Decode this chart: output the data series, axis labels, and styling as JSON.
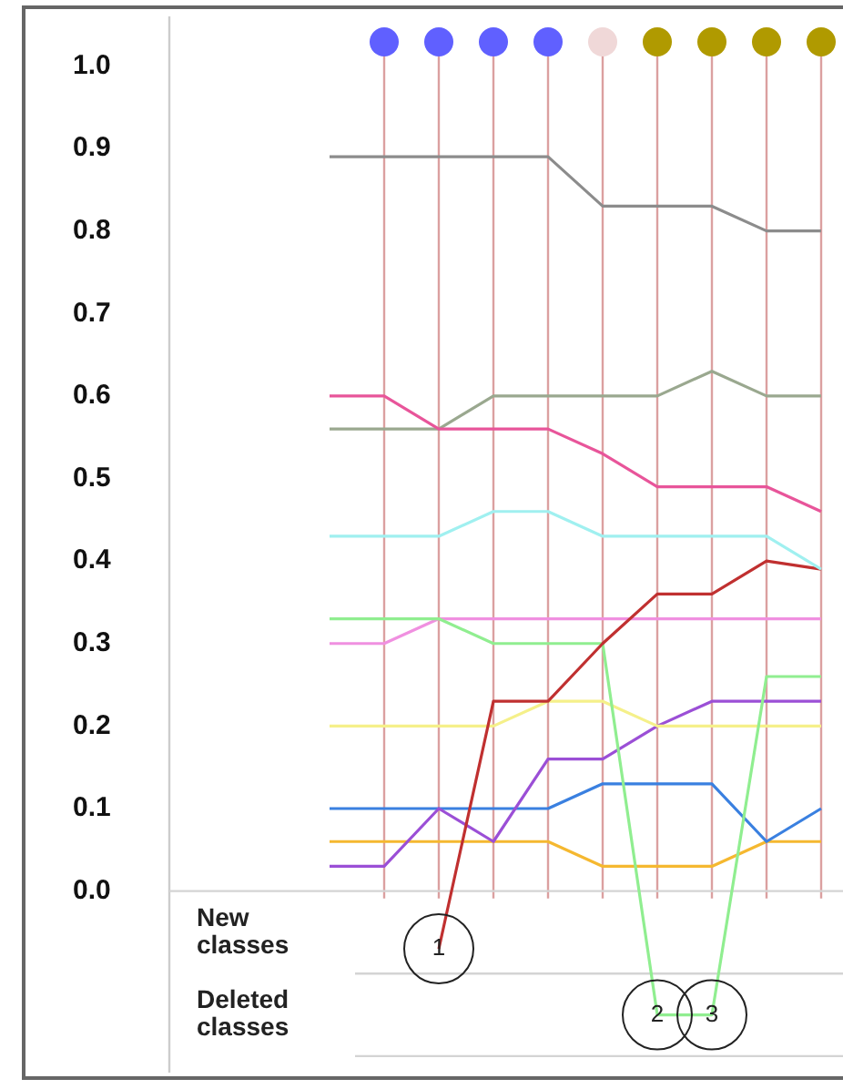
{
  "chart_data": {
    "type": "line",
    "tick_labels": "y",
    "grid": "x",
    "legend": false,
    "marker": "none",
    "line_style": "solid",
    "categories": [
      null,
      null,
      null,
      null,
      null,
      null,
      null,
      null,
      null,
      null
    ],
    "ylim": [
      -0.22,
      1.06
    ],
    "yticks": [
      {
        "value": 0,
        "label": "0.0"
      },
      0.1,
      0.2,
      0.3,
      0.4,
      0.5,
      0.6,
      0.7,
      0.8,
      0.9,
      {
        "value": 1,
        "label": "1.0"
      }
    ],
    "series": [
      {
        "color": "#8c8c8c",
        "values": [
          0.89,
          0.89,
          0.89,
          0.89,
          0.89,
          0.83,
          0.83,
          0.83,
          0.8,
          0.8
        ]
      },
      {
        "color": "#e8559a",
        "values": [
          0.6,
          0.6,
          0.56,
          0.56,
          0.56,
          0.53,
          0.49,
          0.49,
          0.49,
          0.46
        ]
      },
      {
        "color": "#9aa88f",
        "values": [
          0.56,
          0.56,
          0.56,
          0.6,
          0.6,
          0.6,
          0.6,
          0.63,
          0.6,
          0.6
        ]
      },
      {
        "color": "#a0f0f0",
        "values": [
          0.43,
          0.43,
          0.43,
          0.46,
          0.46,
          0.43,
          0.43,
          0.43,
          0.43,
          0.39
        ]
      },
      {
        "color": "#c03030",
        "values": [
          null,
          null,
          -0.07,
          0.23,
          0.23,
          0.3,
          0.36,
          0.36,
          0.4,
          0.39
        ]
      },
      {
        "color": "#90ee90",
        "values": [
          0.33,
          0.33,
          0.33,
          0.3,
          0.3,
          0.3,
          -0.15,
          -0.15,
          0.26,
          0.26
        ]
      },
      {
        "color": "#f090e0",
        "values": [
          0.3,
          0.3,
          0.33,
          0.33,
          0.33,
          0.33,
          0.33,
          0.33,
          0.33,
          0.33
        ]
      },
      {
        "color": "#f5f08a",
        "values": [
          0.2,
          0.2,
          0.2,
          0.2,
          0.23,
          0.23,
          0.2,
          0.2,
          0.2,
          0.2
        ]
      },
      {
        "color": "#9b4fd6",
        "values": [
          0.03,
          0.03,
          0.1,
          0.06,
          0.16,
          0.16,
          0.2,
          0.23,
          0.23,
          0.23
        ]
      },
      {
        "color": "#3a80e0",
        "values": [
          0.1,
          0.1,
          0.1,
          0.1,
          0.1,
          0.13,
          0.13,
          0.13,
          0.06,
          0.1
        ]
      },
      {
        "color": "#f5b830",
        "values": [
          0.06,
          0.06,
          0.06,
          0.06,
          0.06,
          0.03,
          0.03,
          0.03,
          0.06,
          0.06
        ]
      }
    ],
    "ref_lines": [
      {
        "axis": "y",
        "value": 0,
        "color": "#d4d4d4"
      },
      {
        "axis": "y",
        "value": -0.1,
        "color": "#d4d4d4"
      },
      {
        "axis": "y",
        "value": -0.2,
        "color": "#d4d4d4"
      }
    ],
    "annotations": [
      "New classes",
      "Deleted classes",
      {
        "text": "1",
        "y": -0.07
      },
      {
        "text": "2",
        "y": -0.15
      },
      {
        "text": "3",
        "y": -0.15
      }
    ]
  }
}
